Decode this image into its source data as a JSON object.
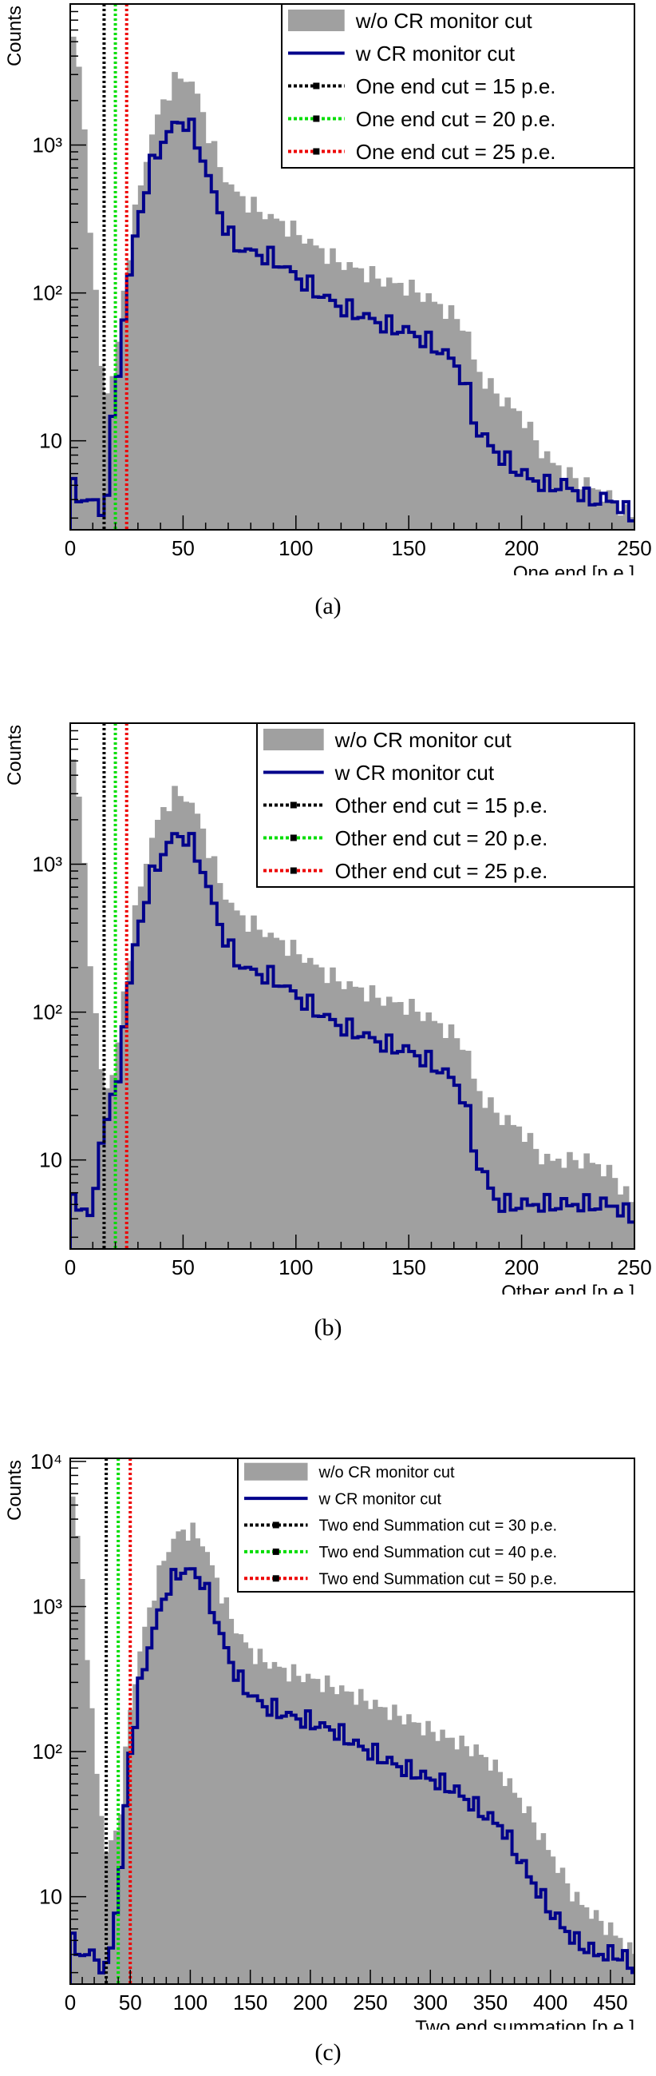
{
  "chart_data": [
    {
      "type": "bar",
      "panel_label": "(a)",
      "ylabel": "Counts",
      "xlabel": "One end [p.e.]",
      "xlim": [
        0,
        250
      ],
      "ylim": [
        2.5,
        9000
      ],
      "log_y": true,
      "x_ticks": [
        0,
        50,
        100,
        150,
        200,
        250
      ],
      "x_tick_labels": [
        "0",
        "50",
        "100",
        "150",
        "200",
        "250"
      ],
      "y_ticks": [
        10,
        100,
        1000
      ],
      "y_tick_labels": [
        "10",
        "10²",
        "10³"
      ],
      "legend_position": "top-right",
      "series": [
        {
          "name": "w/o CR monitor cut",
          "style": "filled",
          "color": "#a0a0a0",
          "x": [
            0,
            5,
            10,
            15,
            20,
            25,
            30,
            35,
            40,
            45,
            50,
            55,
            60,
            65,
            70,
            75,
            80,
            85,
            90,
            95,
            100,
            110,
            120,
            130,
            140,
            150,
            160,
            170,
            175,
            180,
            190,
            200,
            210,
            220,
            230,
            240,
            250
          ],
          "y": [
            7000,
            2500,
            150,
            20,
            30,
            150,
            450,
            1000,
            1800,
            2600,
            3000,
            2500,
            1400,
            800,
            550,
            450,
            400,
            350,
            320,
            290,
            260,
            200,
            160,
            140,
            120,
            110,
            90,
            70,
            60,
            30,
            20,
            15,
            8,
            6,
            5,
            4,
            3
          ]
        },
        {
          "name": "w CR monitor cut",
          "style": "line",
          "color": "#00008b",
          "x": [
            0,
            5,
            10,
            15,
            20,
            25,
            30,
            35,
            40,
            45,
            50,
            55,
            60,
            65,
            70,
            75,
            80,
            85,
            90,
            95,
            100,
            110,
            120,
            130,
            140,
            150,
            160,
            170,
            175,
            180,
            190,
            200,
            210,
            220,
            230,
            240,
            250
          ],
          "y": [
            5,
            4,
            4,
            3,
            20,
            100,
            300,
            650,
            1000,
            1300,
            1500,
            1200,
            700,
            400,
            250,
            200,
            190,
            180,
            170,
            150,
            130,
            100,
            80,
            70,
            60,
            55,
            45,
            35,
            25,
            12,
            8,
            6,
            5,
            5,
            4,
            4,
            3
          ]
        }
      ],
      "cuts": [
        {
          "label": "One end cut = 15 p.e.",
          "value": 15,
          "color": "#000000"
        },
        {
          "label": "One end cut = 20 p.e.",
          "value": 20,
          "color": "#00dd00"
        },
        {
          "label": "One end cut = 25 p.e.",
          "value": 25,
          "color": "#ee0000"
        }
      ]
    },
    {
      "type": "bar",
      "panel_label": "(b)",
      "ylabel": "Counts",
      "xlabel": "Other end [p.e.]",
      "xlim": [
        0,
        250
      ],
      "ylim": [
        2.5,
        9000
      ],
      "log_y": true,
      "x_ticks": [
        0,
        50,
        100,
        150,
        200,
        250
      ],
      "x_tick_labels": [
        "0",
        "50",
        "100",
        "150",
        "200",
        "250"
      ],
      "y_ticks": [
        10,
        100,
        1000
      ],
      "y_tick_labels": [
        "10",
        "10²",
        "10³"
      ],
      "legend_position": "top-right",
      "series": [
        {
          "name": "w/o CR monitor cut",
          "style": "filled",
          "color": "#a0a0a0",
          "x": [
            0,
            5,
            10,
            15,
            20,
            25,
            30,
            35,
            40,
            45,
            50,
            55,
            60,
            65,
            70,
            75,
            80,
            85,
            90,
            95,
            100,
            110,
            120,
            130,
            140,
            150,
            160,
            170,
            175,
            180,
            190,
            200,
            210,
            220,
            230,
            240,
            250
          ],
          "y": [
            7000,
            2000,
            120,
            30,
            40,
            200,
            600,
            1300,
            2200,
            2900,
            3000,
            2400,
            1500,
            850,
            560,
            450,
            400,
            360,
            320,
            290,
            260,
            200,
            160,
            140,
            120,
            110,
            90,
            70,
            60,
            30,
            20,
            16,
            10,
            10,
            10,
            8,
            5
          ]
        },
        {
          "name": "w CR monitor cut",
          "style": "line",
          "color": "#00008b",
          "x": [
            0,
            5,
            10,
            15,
            20,
            25,
            30,
            35,
            40,
            45,
            50,
            55,
            60,
            65,
            70,
            75,
            80,
            85,
            90,
            95,
            100,
            110,
            120,
            130,
            140,
            150,
            160,
            170,
            175,
            180,
            190,
            200,
            210,
            220,
            230,
            240,
            250
          ],
          "y": [
            5,
            5,
            4,
            20,
            25,
            120,
            350,
            750,
            1100,
            1500,
            1600,
            1300,
            800,
            450,
            280,
            210,
            190,
            180,
            170,
            150,
            130,
            100,
            80,
            70,
            60,
            55,
            45,
            35,
            25,
            10,
            5,
            5,
            5,
            5,
            5,
            5,
            4
          ]
        }
      ],
      "cuts": [
        {
          "label": "Other end cut = 15 p.e.",
          "value": 15,
          "color": "#000000"
        },
        {
          "label": "Other end cut = 20 p.e.",
          "value": 20,
          "color": "#00dd00"
        },
        {
          "label": "Other end cut = 25 p.e.",
          "value": 25,
          "color": "#ee0000"
        }
      ]
    },
    {
      "type": "bar",
      "panel_label": "(c)",
      "ylabel": "Counts",
      "xlabel": "Two end summation [p.e.]",
      "xlim": [
        0,
        470
      ],
      "ylim": [
        2.5,
        10500
      ],
      "log_y": true,
      "x_ticks": [
        0,
        50,
        100,
        150,
        200,
        250,
        300,
        350,
        400,
        450
      ],
      "x_tick_labels": [
        "0",
        "50",
        "100",
        "150",
        "200",
        "250",
        "300",
        "350",
        "400",
        "450"
      ],
      "y_ticks": [
        10,
        100,
        1000,
        10000
      ],
      "y_tick_labels": [
        "10",
        "10²",
        "10³",
        "10⁴"
      ],
      "legend_position": "top-right",
      "series": [
        {
          "name": "w/o CR monitor cut",
          "style": "filled",
          "color": "#a0a0a0",
          "x": [
            0,
            10,
            20,
            30,
            40,
            50,
            60,
            70,
            80,
            90,
            100,
            110,
            120,
            130,
            140,
            150,
            160,
            180,
            200,
            220,
            240,
            260,
            280,
            300,
            320,
            340,
            360,
            380,
            400,
            420,
            440,
            460,
            470
          ],
          "y": [
            8000,
            1500,
            100,
            20,
            30,
            200,
            600,
            1300,
            2400,
            3200,
            3400,
            2800,
            1700,
            1000,
            650,
            500,
            430,
            360,
            320,
            280,
            240,
            200,
            170,
            140,
            120,
            100,
            70,
            40,
            20,
            10,
            7,
            5,
            4
          ]
        },
        {
          "name": "w CR monitor cut",
          "style": "line",
          "color": "#00008b",
          "x": [
            0,
            10,
            20,
            30,
            40,
            50,
            60,
            70,
            80,
            90,
            100,
            110,
            120,
            130,
            140,
            150,
            160,
            180,
            200,
            220,
            240,
            260,
            280,
            300,
            320,
            340,
            360,
            380,
            400,
            420,
            440,
            460,
            470
          ],
          "y": [
            5,
            4,
            4,
            3,
            10,
            100,
            350,
            700,
            1300,
            1700,
            1800,
            1500,
            900,
            500,
            320,
            250,
            210,
            180,
            160,
            140,
            110,
            90,
            75,
            65,
            55,
            40,
            30,
            15,
            8,
            5,
            4,
            4,
            3
          ]
        }
      ],
      "cuts": [
        {
          "label": "Two end Summation cut = 30 p.e.",
          "value": 30,
          "color": "#000000"
        },
        {
          "label": "Two end Summation cut = 40 p.e.",
          "value": 40,
          "color": "#00dd00"
        },
        {
          "label": "Two end Summation cut = 50 p.e.",
          "value": 50,
          "color": "#ee0000"
        }
      ]
    }
  ]
}
